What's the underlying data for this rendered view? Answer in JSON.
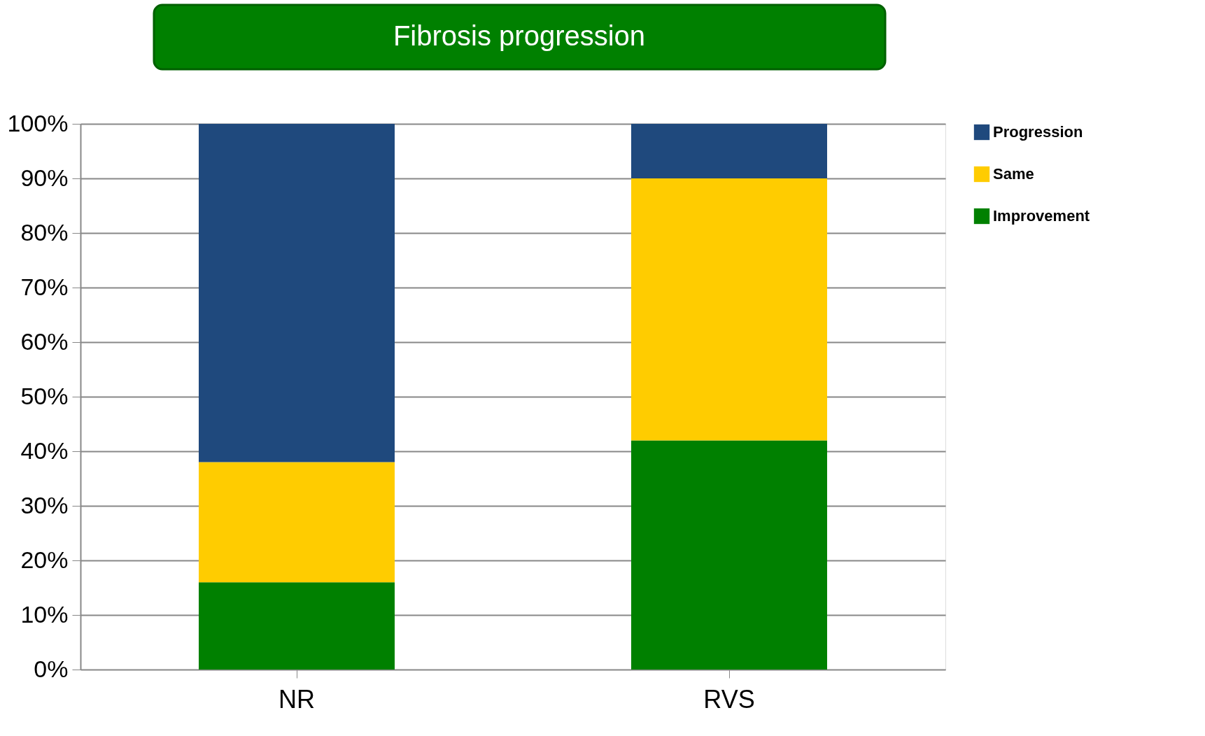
{
  "chart_data": {
    "type": "bar",
    "title": "Fibrosis progression",
    "stacked": true,
    "categories": [
      "NR",
      "RVS"
    ],
    "series": [
      {
        "name": "Improvement",
        "color": "#008000",
        "values": [
          16,
          42
        ]
      },
      {
        "name": "Same",
        "color": "#ffcc00",
        "values": [
          22,
          48
        ]
      },
      {
        "name": "Progression",
        "color": "#1f497d",
        "values": [
          62,
          10
        ]
      }
    ],
    "ylim": [
      0,
      100
    ],
    "yticks": [
      {
        "value": 0,
        "label": "0%"
      },
      {
        "value": 10,
        "label": "10%"
      },
      {
        "value": 20,
        "label": "20%"
      },
      {
        "value": 30,
        "label": "30%"
      },
      {
        "value": 40,
        "label": "40%"
      },
      {
        "value": 50,
        "label": "50%"
      },
      {
        "value": 60,
        "label": "60%"
      },
      {
        "value": 70,
        "label": "70%"
      },
      {
        "value": 80,
        "label": "80%"
      },
      {
        "value": 90,
        "label": "90%"
      },
      {
        "value": 100,
        "label": "100%"
      }
    ],
    "grid": "y",
    "legend": "right"
  }
}
